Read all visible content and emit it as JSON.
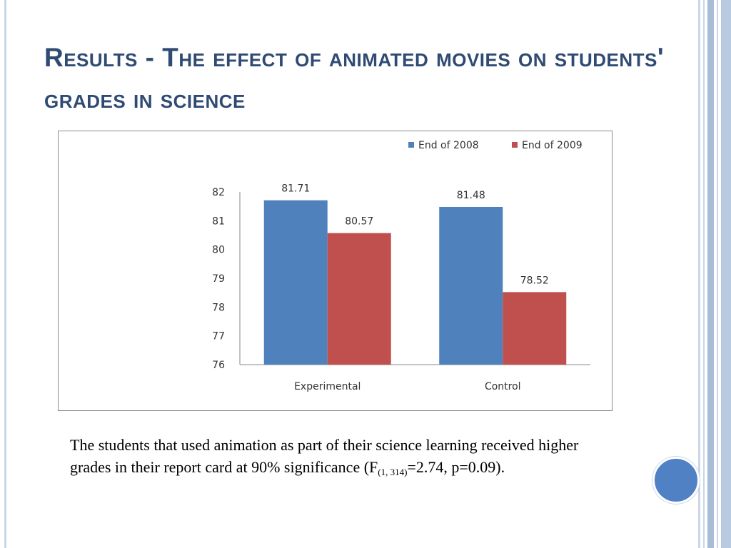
{
  "slide": {
    "title": "Results - The effect of animated movies on students' grades in science",
    "caption": {
      "text_before": "The students that used animation as part of their science learning received higher grades in their report card at 90% significance (F",
      "subscript": "(1, 314)",
      "text_after": "=2.74, p=0.09)."
    }
  },
  "colors": {
    "title": "#2f4a73",
    "series_2008": "#4f81bd",
    "series_2009": "#c0504d",
    "accent_circle": "#4f81c4"
  },
  "chart_data": {
    "type": "bar",
    "categories": [
      "Experimental",
      "Control"
    ],
    "series": [
      {
        "name": "End of 2008",
        "values": [
          81.71,
          81.48
        ]
      },
      {
        "name": "End of 2009",
        "values": [
          80.57,
          78.52
        ]
      }
    ],
    "data_labels": [
      [
        "81.71",
        "81.48"
      ],
      [
        "80.57",
        "78.52"
      ]
    ],
    "yticks": [
      "76",
      "77",
      "78",
      "79",
      "80",
      "81",
      "82"
    ],
    "ylim": [
      76,
      82
    ],
    "xlabel": "",
    "ylabel": "",
    "legend": "top-right",
    "grid": false
  }
}
